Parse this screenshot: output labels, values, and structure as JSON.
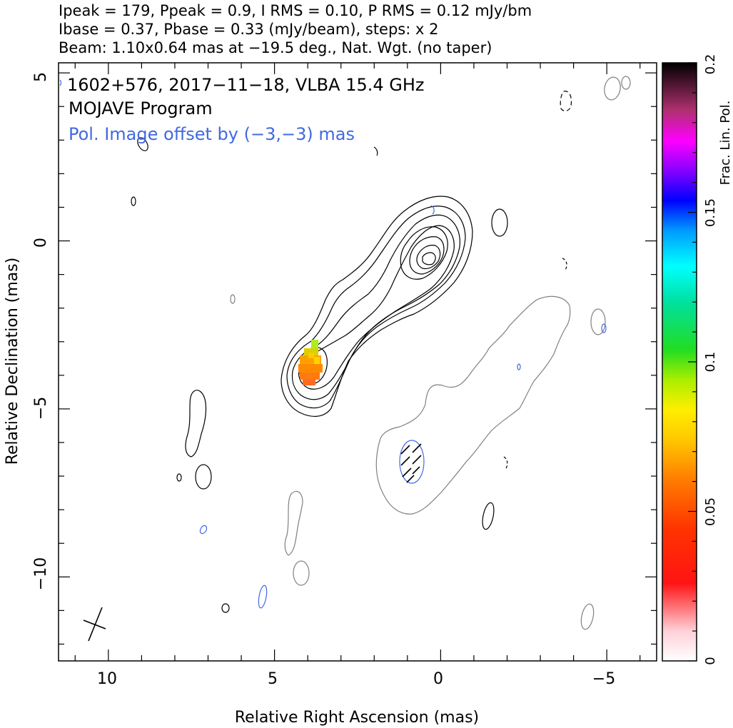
{
  "header": {
    "line1": "Ipeak = 179, Ppeak = 0.9, I RMS = 0.10, P RMS = 0.12 mJy/bm",
    "line2": "Ibase = 0.37, Pbase = 0.33 (mJy/beam), steps: x 2",
    "line3": "Beam: 1.10x0.64 mas at −19.5 deg., Nat. Wgt. (no taper)"
  },
  "plot": {
    "title_line1": "1602+576, 2017−11−18, VLBA 15.4 GHz",
    "title_line2": "MOJAVE Program",
    "title_line3": "Pol. Image offset by (−3,−3) mas",
    "xlabel": "Relative Right Ascension (mas)",
    "ylabel": "Relative Declination (mas)",
    "xticks": [
      "10",
      "5",
      "0",
      "−5"
    ],
    "yticks": [
      "5",
      "0",
      "−5",
      "−10"
    ]
  },
  "colorbar": {
    "label": "Frac. Lin. Pol.",
    "ticks": [
      "0",
      "0.05",
      "0.1",
      "0.15",
      "0.2"
    ]
  },
  "colors": {
    "total_intensity_contour": "#000000",
    "offset_pol_contour": "#808080",
    "pol_annotation": "#4169e1"
  },
  "chart_data": {
    "type": "contour",
    "source": "1602+576",
    "epoch": "2017-11-18",
    "instrument": "VLBA 15.4 GHz",
    "xlim": [
      11.5,
      -6.5
    ],
    "ylim": [
      -12.5,
      5.3
    ],
    "ipeak_mJy_per_beam": 179,
    "ppeak_mJy_per_beam": 0.9,
    "i_rms": 0.1,
    "p_rms": 0.12,
    "ibase": 0.37,
    "pbase": 0.33,
    "contour_step_factor": 2,
    "beam": {
      "major_mas": 1.1,
      "minor_mas": 0.64,
      "pa_deg": -19.5
    },
    "core_position_mas": [
      0.5,
      -0.6
    ],
    "knot_position_mas": [
      3.9,
      -3.8
    ],
    "frac_pol_colorscale": [
      0,
      0.2
    ]
  }
}
